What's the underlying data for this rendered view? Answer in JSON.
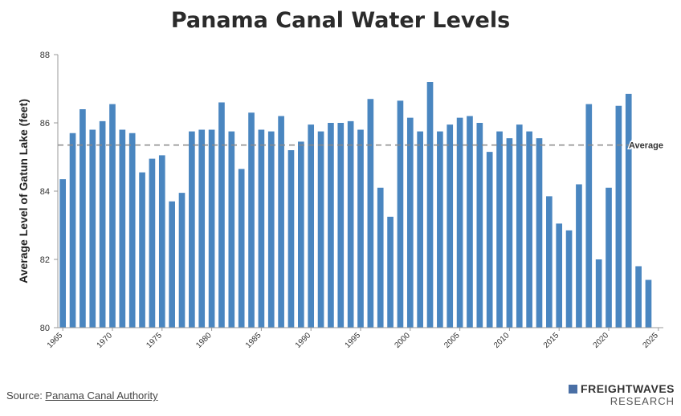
{
  "chart_data": {
    "type": "bar",
    "title": "Panama Canal Water Levels",
    "ylabel": "Average Level of Gatun Lake (feet)",
    "xlabel": "",
    "ylim": [
      80,
      88
    ],
    "yticks": [
      80,
      82,
      84,
      86,
      88
    ],
    "xticks": [
      1965,
      1970,
      1975,
      1980,
      1985,
      1990,
      1995,
      2000,
      2005,
      2010,
      2015,
      2020,
      2025
    ],
    "categories": [
      1965,
      1966,
      1967,
      1968,
      1969,
      1970,
      1971,
      1972,
      1973,
      1974,
      1975,
      1976,
      1977,
      1978,
      1979,
      1980,
      1981,
      1982,
      1983,
      1984,
      1985,
      1986,
      1987,
      1988,
      1989,
      1990,
      1991,
      1992,
      1993,
      1994,
      1995,
      1996,
      1997,
      1998,
      1999,
      2000,
      2001,
      2002,
      2003,
      2004,
      2005,
      2006,
      2007,
      2008,
      2009,
      2010,
      2011,
      2012,
      2013,
      2014,
      2015,
      2016,
      2017,
      2018,
      2019,
      2020,
      2021,
      2022,
      2023,
      2024
    ],
    "values": [
      84.35,
      85.7,
      86.4,
      85.8,
      86.05,
      86.55,
      85.8,
      85.7,
      84.55,
      84.95,
      85.05,
      83.7,
      83.95,
      85.75,
      85.8,
      85.8,
      86.6,
      85.75,
      84.65,
      86.3,
      85.8,
      85.75,
      86.2,
      85.2,
      85.45,
      85.95,
      85.75,
      86.0,
      86.0,
      86.05,
      85.8,
      86.7,
      84.1,
      83.25,
      86.65,
      86.15,
      85.75,
      87.2,
      85.75,
      85.95,
      86.15,
      86.2,
      86.0,
      85.15,
      85.75,
      85.55,
      85.95,
      85.75,
      85.55,
      83.85,
      83.05,
      82.85,
      84.2,
      86.55,
      82.0,
      84.1,
      86.5,
      86.85,
      81.8,
      81.4
    ],
    "average": 85.35,
    "average_label": "Average",
    "bar_color": "#4a86c0",
    "grid": false,
    "legend": "none"
  },
  "source": {
    "prefix": "Source: ",
    "link_text": "Panama Canal Authority"
  },
  "brand": {
    "name": "FREIGHTWAVES",
    "sub": "RESEARCH"
  }
}
